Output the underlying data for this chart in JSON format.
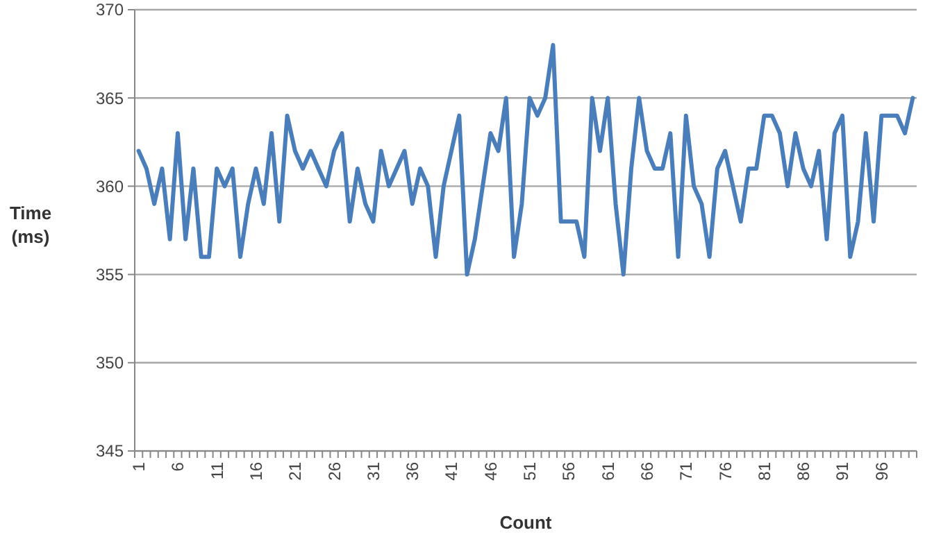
{
  "chart_data": {
    "type": "line",
    "xlabel": "Count",
    "ylabel": "Time (ms)",
    "categories": [
      "1",
      null,
      null,
      null,
      null,
      "6",
      null,
      null,
      null,
      null,
      "11",
      null,
      null,
      null,
      null,
      "16",
      null,
      null,
      null,
      null,
      "21",
      null,
      null,
      null,
      null,
      "26",
      null,
      null,
      null,
      null,
      "31",
      null,
      null,
      null,
      null,
      "36",
      null,
      null,
      null,
      null,
      "41",
      null,
      null,
      null,
      null,
      "46",
      null,
      null,
      null,
      null,
      "51",
      null,
      null,
      null,
      null,
      "56",
      null,
      null,
      null,
      null,
      "61",
      null,
      null,
      null,
      null,
      "66",
      null,
      null,
      null,
      null,
      "71",
      null,
      null,
      null,
      null,
      "76",
      null,
      null,
      null,
      null,
      "81",
      null,
      null,
      null,
      null,
      "86",
      null,
      null,
      null,
      null,
      "91",
      null,
      null,
      null,
      null,
      "96",
      null,
      null,
      null,
      null
    ],
    "series": [
      {
        "color": "#4a7ebb",
        "values": [
          362,
          361,
          359,
          361,
          357,
          363,
          357,
          361,
          356,
          356,
          361,
          360,
          361,
          356,
          359,
          361,
          359,
          363,
          358,
          364,
          362,
          361,
          362,
          361,
          360,
          362,
          363,
          358,
          361,
          359,
          358,
          362,
          360,
          361,
          362,
          359,
          361,
          360,
          356,
          360,
          362,
          364,
          355,
          357,
          360,
          363,
          362,
          365,
          356,
          359,
          365,
          364,
          365,
          368,
          358,
          358,
          358,
          356,
          365,
          362,
          365,
          359,
          355,
          361,
          365,
          362,
          361,
          361,
          363,
          356,
          364,
          360,
          359,
          356,
          361,
          362,
          360,
          358,
          361,
          361,
          364,
          364,
          363,
          360,
          363,
          361,
          360,
          362,
          357,
          363,
          364,
          356,
          358,
          363,
          358,
          364,
          364,
          364,
          363,
          365
        ]
      }
    ],
    "ylim": [
      345,
      370
    ],
    "yticks": [
      345,
      350,
      355,
      360,
      365,
      370
    ],
    "grid": "y",
    "marker": "none",
    "line_style": "solid"
  }
}
